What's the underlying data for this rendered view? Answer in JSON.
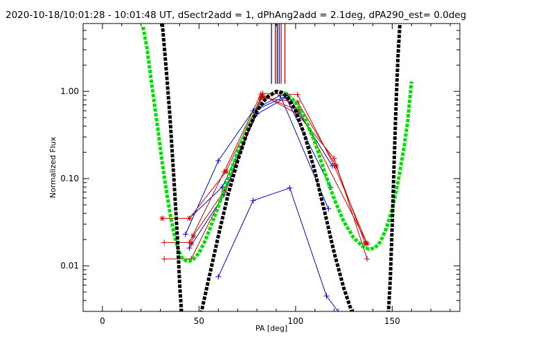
{
  "chart_data": {
    "type": "line",
    "title": "2020-10-18/10:01:28 - 10:01:48 UT, dSectr2add = 1, dPhAng2add = 2.1deg, dPA290_est=  0.0deg",
    "xlabel": "PA [deg]",
    "ylabel": "Normalized Flux",
    "xlim": [
      -10,
      185
    ],
    "ylim": [
      0.003,
      6
    ],
    "yscale": "log",
    "grid": false,
    "x_ticks": [
      {
        "value": 0,
        "label": "0"
      },
      {
        "value": 50,
        "label": "50"
      },
      {
        "value": 100,
        "label": "100"
      },
      {
        "value": 150,
        "label": "150"
      }
    ],
    "y_ticks": [
      {
        "value": 0.01,
        "label": "0.01"
      },
      {
        "value": 0.1,
        "label": "0.10"
      },
      {
        "value": 1,
        "label": "1.00"
      }
    ],
    "vertical_lines": [
      {
        "x": 87.5,
        "color": "#0000cc"
      },
      {
        "x": 89.5,
        "color": "#cc0000"
      },
      {
        "x": 90.5,
        "color": "#000000"
      },
      {
        "x": 91.5,
        "color": "#0000cc"
      },
      {
        "x": 92.5,
        "color": "#cc0000"
      },
      {
        "x": 94.5,
        "color": "#cc0000"
      }
    ],
    "series": [
      {
        "color": "#0000cc",
        "marker": "plus",
        "points": [
          [
            43,
            0.023
          ],
          [
            60,
            0.16
          ],
          [
            78,
            0.6
          ],
          [
            92,
            0.9
          ],
          [
            117,
            0.045
          ]
        ]
      },
      {
        "color": "#0000cc",
        "marker": "plus",
        "points": [
          [
            45,
            0.035
          ],
          [
            62,
            0.08
          ],
          [
            80,
            0.55
          ],
          [
            95,
            0.85
          ],
          [
            118,
            0.08
          ]
        ]
      },
      {
        "color": "#0000cc",
        "marker": "plus",
        "points": [
          [
            60,
            0.0075
          ],
          [
            78,
            0.056
          ],
          [
            97,
            0.078
          ],
          [
            116,
            0.0045
          ],
          [
            122,
            0.003
          ]
        ]
      },
      {
        "color": "#0000cc",
        "marker": "plus",
        "points": [
          [
            45,
            0.016
          ],
          [
            63,
            0.065
          ],
          [
            80,
            0.62
          ],
          [
            96,
            0.9
          ],
          [
            119,
            0.14
          ]
        ]
      },
      {
        "color": "#cc0000",
        "marker": "plus",
        "points": [
          [
            32,
            0.0185
          ],
          [
            45,
            0.0185
          ],
          [
            63,
            0.12
          ],
          [
            82,
            0.93
          ],
          [
            101,
            0.55
          ],
          [
            120,
            0.17
          ],
          [
            137,
            0.012
          ]
        ]
      },
      {
        "color": "#cc0000",
        "marker": "plus",
        "points": [
          [
            32,
            0.012
          ],
          [
            46,
            0.012
          ],
          [
            63,
            0.07
          ],
          [
            83,
            0.95
          ],
          [
            101,
            0.92
          ],
          [
            120,
            0.14
          ],
          [
            137,
            0.018
          ]
        ]
      },
      {
        "color": "#cc0000",
        "marker": "star",
        "points": [
          [
            31,
            0.035
          ],
          [
            45,
            0.035
          ],
          [
            64,
            0.12
          ],
          [
            82,
            0.85
          ],
          [
            101,
            0.75
          ],
          [
            121,
            0.14
          ],
          [
            136,
            0.018
          ]
        ]
      },
      {
        "color": "#cc0000",
        "marker": "star",
        "points": [
          [
            46,
            0.018
          ],
          [
            47,
            0.022
          ],
          [
            63,
            0.072
          ],
          [
            83,
            0.88
          ],
          [
            102,
            0.6
          ],
          [
            137,
            0.018
          ]
        ]
      }
    ],
    "model_curves": [
      {
        "color": "#00e000",
        "style": "thick-dashed",
        "points": [
          [
            21,
            5.5
          ],
          [
            23,
            3.2
          ],
          [
            25,
            1.5
          ],
          [
            27,
            0.7
          ],
          [
            29,
            0.33
          ],
          [
            31,
            0.15
          ],
          [
            33,
            0.075
          ],
          [
            35,
            0.04
          ],
          [
            37,
            0.024
          ],
          [
            39,
            0.016
          ],
          [
            41,
            0.0125
          ],
          [
            43,
            0.0115
          ],
          [
            45,
            0.0113
          ],
          [
            47,
            0.0118
          ],
          [
            50,
            0.014
          ],
          [
            53,
            0.019
          ],
          [
            56,
            0.028
          ],
          [
            60,
            0.048
          ],
          [
            65,
            0.1
          ],
          [
            70,
            0.2
          ],
          [
            75,
            0.38
          ],
          [
            80,
            0.62
          ],
          [
            85,
            0.86
          ],
          [
            90,
            1.0
          ],
          [
            95,
            0.95
          ],
          [
            100,
            0.75
          ],
          [
            105,
            0.48
          ],
          [
            110,
            0.26
          ],
          [
            115,
            0.12
          ],
          [
            120,
            0.058
          ],
          [
            125,
            0.032
          ],
          [
            130,
            0.021
          ],
          [
            135,
            0.0165
          ],
          [
            138,
            0.0155
          ],
          [
            141,
            0.016
          ],
          [
            144,
            0.019
          ],
          [
            147,
            0.027
          ],
          [
            150,
            0.045
          ],
          [
            152,
            0.07
          ],
          [
            154,
            0.12
          ],
          [
            156,
            0.22
          ],
          [
            158,
            0.45
          ],
          [
            160,
            1.3
          ]
        ]
      },
      {
        "color": "#000000",
        "style": "thick-dashed",
        "points": [
          [
            31,
            6
          ],
          [
            33,
            1.8
          ],
          [
            35,
            0.5
          ],
          [
            37,
            0.1
          ],
          [
            39,
            0.018
          ],
          [
            40,
            0.006
          ],
          [
            41,
            0.0028
          ]
        ]
      },
      {
        "color": "#000000",
        "style": "thick-dashed",
        "points": [
          [
            51,
            0.0028
          ],
          [
            55,
            0.007
          ],
          [
            60,
            0.022
          ],
          [
            65,
            0.065
          ],
          [
            70,
            0.16
          ],
          [
            75,
            0.34
          ],
          [
            80,
            0.6
          ],
          [
            85,
            0.85
          ],
          [
            90,
            1.0
          ],
          [
            93,
            0.97
          ],
          [
            96,
            0.85
          ],
          [
            100,
            0.6
          ],
          [
            105,
            0.3
          ],
          [
            110,
            0.12
          ],
          [
            115,
            0.042
          ],
          [
            120,
            0.014
          ],
          [
            125,
            0.0055
          ],
          [
            129,
            0.003
          ]
        ]
      },
      {
        "color": "#000000",
        "style": "thick-dashed",
        "points": [
          [
            148,
            0.0028
          ],
          [
            149,
            0.007
          ],
          [
            150,
            0.03
          ],
          [
            151,
            0.15
          ],
          [
            152,
            0.7
          ],
          [
            153,
            2.5
          ],
          [
            154,
            6
          ]
        ]
      }
    ]
  }
}
